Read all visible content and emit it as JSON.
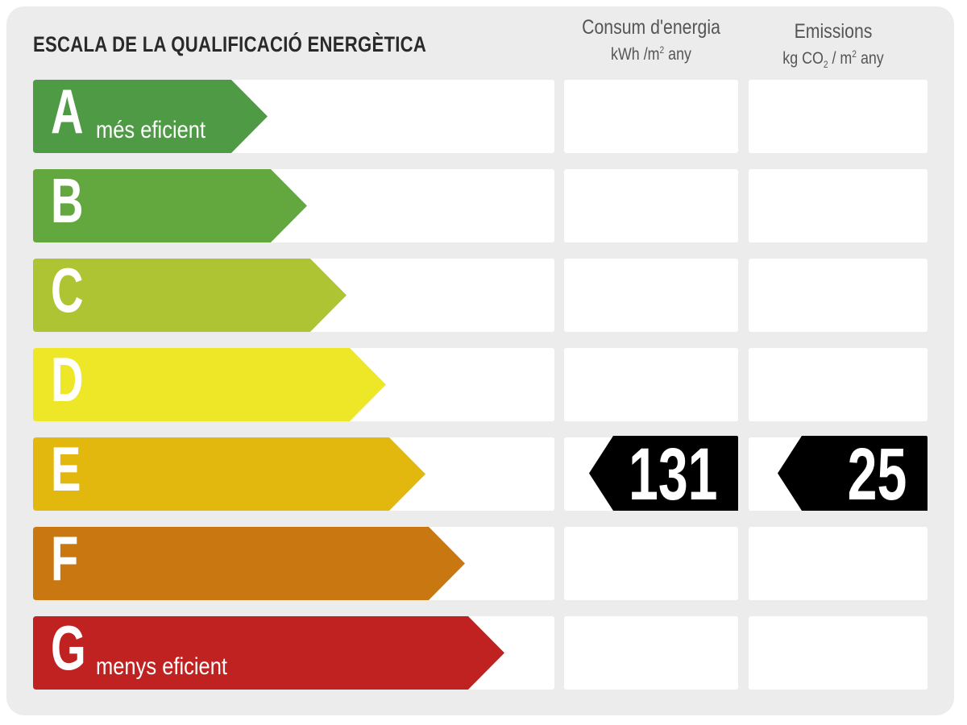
{
  "title": "ESCALA DE LA QUALIFICACIÓ ENERGÈTICA",
  "columns": {
    "energy": {
      "title": "Consum d'energia",
      "unit_pre": "kWh /m",
      "unit_sup": "2",
      "unit_post": " any"
    },
    "emissions": {
      "title": "Emissions",
      "unit_pre": "kg CO",
      "unit_sub": "2",
      "unit_mid": "  / m",
      "unit_sup": "2",
      "unit_post": " any"
    }
  },
  "ratings": [
    {
      "letter": "A",
      "label": "més eficient",
      "color": "#4e9a45"
    },
    {
      "letter": "B",
      "label": "",
      "color": "#63a83f"
    },
    {
      "letter": "C",
      "label": "",
      "color": "#aec432"
    },
    {
      "letter": "D",
      "label": "",
      "color": "#ede727"
    },
    {
      "letter": "E",
      "label": "",
      "color": "#e2b80f"
    },
    {
      "letter": "F",
      "label": "",
      "color": "#c97811"
    },
    {
      "letter": "G",
      "label": "menys eficient",
      "color": "#bf2220"
    }
  ],
  "result": {
    "rating": "E",
    "energy_value": "131",
    "emissions_value": "25",
    "badge_color": "#000000"
  }
}
